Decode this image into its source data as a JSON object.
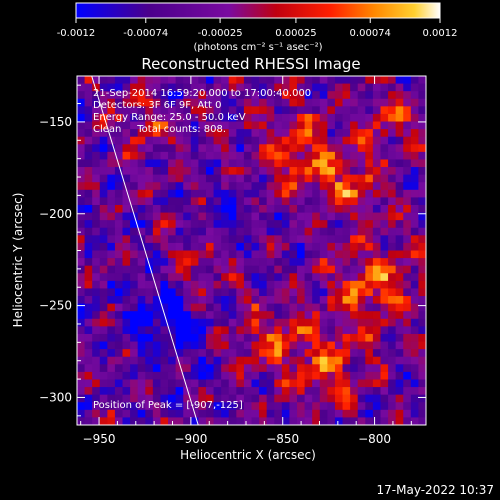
{
  "chart_data": {
    "type": "heatmap",
    "title": "Reconstructed RHESSI Image",
    "xlabel": "Heliocentric X (arcsec)",
    "ylabel": "Heliocentric Y (arcsec)",
    "xlim": [
      -962,
      -772
    ],
    "ylim": [
      -315,
      -125
    ],
    "xticks": [
      -950,
      -900,
      -850,
      -800
    ],
    "yticks": [
      -150,
      -200,
      -250,
      -300
    ],
    "colorbar": {
      "min": -0.0012,
      "max": 0.0012,
      "ticks": [
        "-0.0012",
        "-0.00074",
        "-0.00025",
        "0.00025",
        "0.00074",
        "0.0012"
      ],
      "units": "(photons cm⁻² s⁻¹ asec⁻²)",
      "colors": [
        "#0000ff",
        "#4b008c",
        "#7a0aa0",
        "#c00010",
        "#ff2000",
        "#ff8800",
        "#ffd030",
        "#ffffff"
      ]
    },
    "annotations": [
      "21-Sep-2014 16:59:20.000 to 17:00:40.000",
      "Detectors: 3F 6F 9F, Att 0",
      "Energy Range: 25.0 - 50.0 keV",
      "Clean     Total counts: 808.",
      "Position of Peak = [-907,-125]"
    ],
    "limb_line": [
      [
        -954,
        -125
      ],
      [
        -896,
        -315
      ]
    ]
  },
  "footer_date": "17-May-2022 10:37"
}
